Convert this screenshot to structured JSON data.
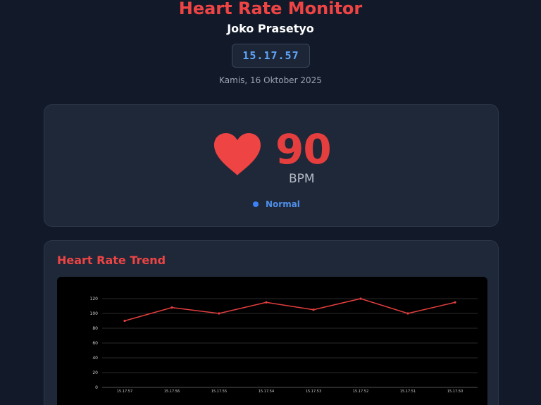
{
  "header": {
    "title": "Heart Rate Monitor",
    "user_name": "Joko Prasetyo",
    "clock": "15.17.57",
    "date": "Kamis, 16 Oktober 2025"
  },
  "reading": {
    "bpm": "90",
    "unit": "BPM",
    "status": "Normal",
    "status_color": "#3b82f6",
    "heart_color": "#ef4444"
  },
  "trend": {
    "title": "Heart Rate Trend"
  },
  "chart_data": {
    "type": "line",
    "x": [
      "15.17.57",
      "15.17.56",
      "15.17.55",
      "15.17.54",
      "15.17.53",
      "15.17.52",
      "15.17.51",
      "15.17.50"
    ],
    "series": [
      {
        "values": [
          90,
          108,
          100,
          115,
          105,
          120,
          100,
          115
        ],
        "color": "#e53e3e"
      }
    ],
    "yticks": [
      0,
      20,
      40,
      60,
      80,
      100,
      120
    ],
    "ylim": [
      0,
      120
    ],
    "grid": true,
    "title": "",
    "xlabel": "",
    "ylabel": ""
  }
}
